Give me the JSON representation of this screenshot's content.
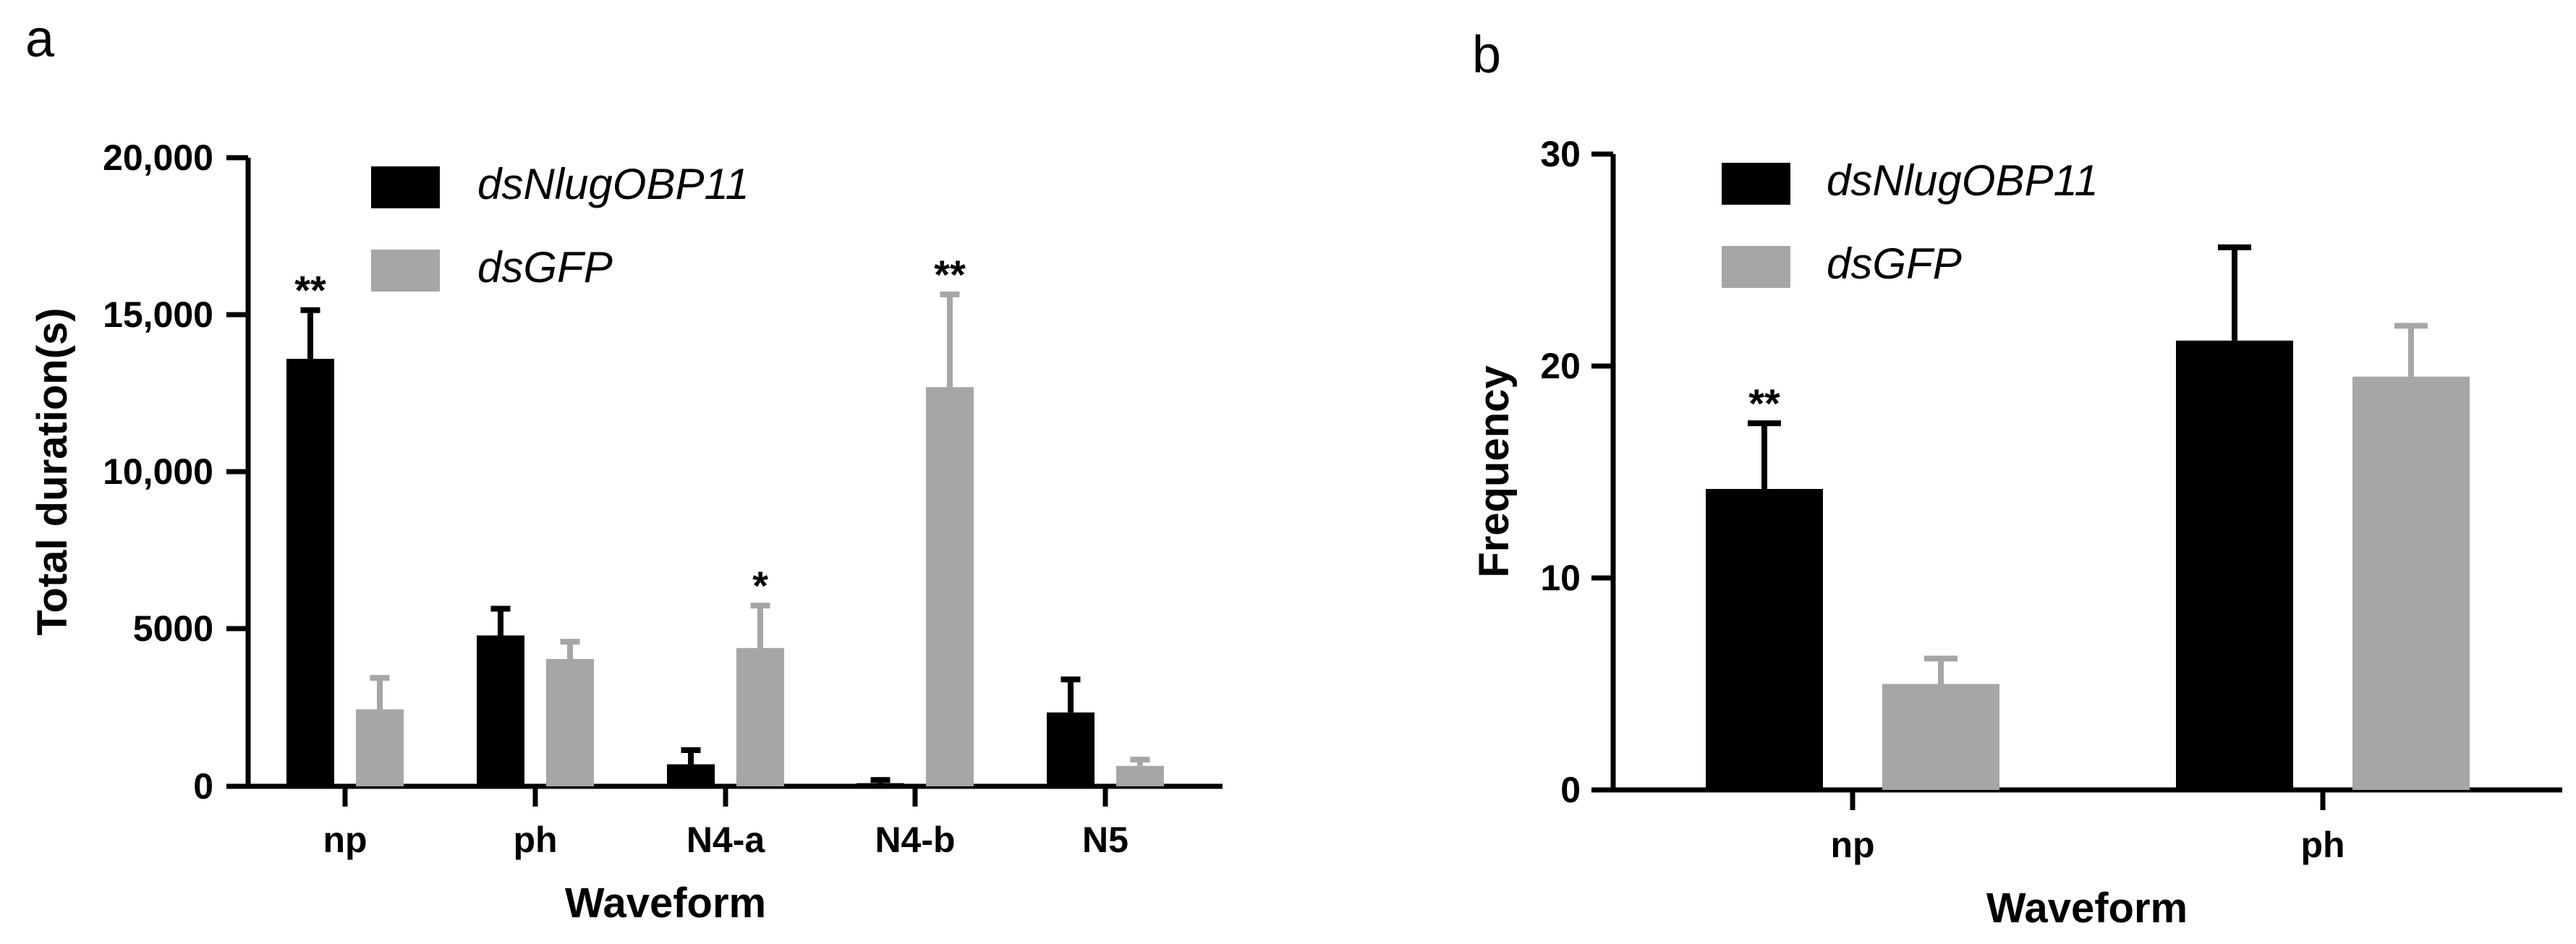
{
  "colors": {
    "dsNlugOBP11": "#000000",
    "dsGFP": "#a6a6a6",
    "axis": "#000000"
  },
  "chart_data": [
    {
      "panel": "a",
      "type": "bar",
      "xlabel": "Waveform",
      "ylabel": "Total duration(s)",
      "ylim": [
        0,
        20000
      ],
      "yticks": [
        0,
        5000,
        10000,
        15000,
        20000
      ],
      "ytick_labels": [
        "0",
        "5000",
        "10,000",
        "15,000",
        "20,000"
      ],
      "categories": [
        "np",
        "ph",
        "N4-a",
        "N4-b",
        "N5"
      ],
      "legend_position": "top",
      "series": [
        {
          "name": "dsNlugOBP11",
          "color": "#000000",
          "values": [
            13600,
            4800,
            700,
            100,
            2350
          ],
          "errors": [
            1550,
            850,
            450,
            100,
            1050
          ]
        },
        {
          "name": "dsGFP",
          "color": "#a6a6a6",
          "values": [
            2450,
            4050,
            4400,
            12700,
            650
          ],
          "errors": [
            1000,
            550,
            1350,
            2950,
            200
          ]
        }
      ],
      "annotations": [
        {
          "category": 0,
          "series": 0,
          "text": "**"
        },
        {
          "category": 2,
          "series": 1,
          "text": "*"
        },
        {
          "category": 3,
          "series": 1,
          "text": "**"
        }
      ]
    },
    {
      "panel": "b",
      "type": "bar",
      "xlabel": "Waveform",
      "ylabel": "Frequency",
      "ylim": [
        0,
        30
      ],
      "yticks": [
        0,
        10,
        20,
        30
      ],
      "ytick_labels": [
        "0",
        "10",
        "20",
        "30"
      ],
      "categories": [
        "np",
        "ph"
      ],
      "legend_position": "top",
      "series": [
        {
          "name": "dsNlugOBP11",
          "color": "#000000",
          "values": [
            14.2,
            21.2
          ],
          "errors": [
            3.1,
            4.4
          ]
        },
        {
          "name": "dsGFP",
          "color": "#a6a6a6",
          "values": [
            5.0,
            19.5
          ],
          "errors": [
            1.2,
            2.4
          ]
        }
      ],
      "annotations": [
        {
          "category": 0,
          "series": 0,
          "text": "**"
        }
      ]
    }
  ]
}
